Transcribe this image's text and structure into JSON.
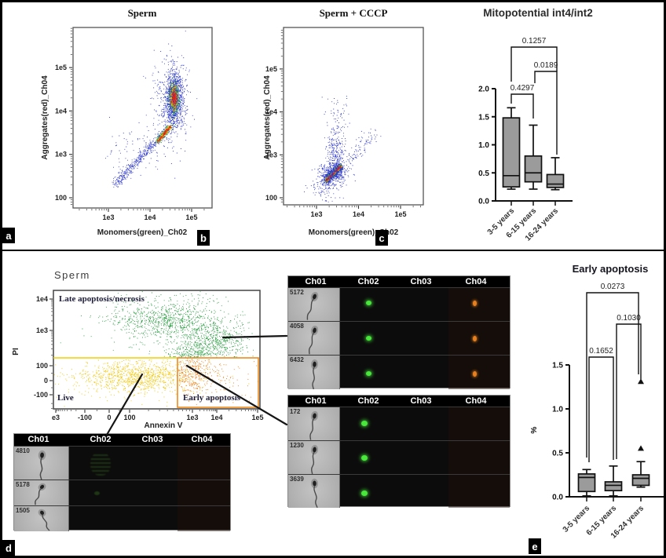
{
  "colors": {
    "blue": "#2b35cc",
    "green": "#259a3d",
    "yellow": "#f2c500",
    "orange": "#ee7c1a",
    "red": "#e02018",
    "box_fill": "#9b9b9b",
    "gate_yellow": "#f2cf00",
    "gate_orange": "#ef8a1a"
  },
  "panels": {
    "a": {
      "label": "a",
      "title": "Sperm",
      "xlabel": "Monomers(green)_Ch02",
      "ylabel": "Aggregates(red)_Ch04"
    },
    "b": {
      "label": "b",
      "title": "Sperm + CCCP",
      "xlabel": "Monomers(green)_Ch02",
      "ylabel": "Aggregates(red)_Ch04"
    },
    "c": {
      "label": "c",
      "title": "Mitopotential int4/int2"
    },
    "d": {
      "label": "d",
      "title": "Sperm",
      "xlabel": "Annexin V",
      "ylabel": "PI",
      "quadrant_labels": [
        "Late apoptosis/necrosis",
        "Live",
        "Early apoptosis"
      ]
    },
    "e": {
      "label": "e",
      "title": "Early apoptosis",
      "ylabel": "%"
    }
  },
  "strips": {
    "headers": [
      "Ch01",
      "Ch02",
      "Ch03",
      "Ch04"
    ],
    "top": {
      "rows": [
        {
          "id": "5172",
          "ch02": "green",
          "ch04": "orange"
        },
        {
          "id": "4058",
          "ch02": "green",
          "ch04": "orange"
        },
        {
          "id": "6432",
          "ch02": "green",
          "ch04": "orange"
        }
      ]
    },
    "middle": {
      "rows": [
        {
          "id": "172",
          "ch02": "green",
          "ch04": "none"
        },
        {
          "id": "1230",
          "ch02": "green",
          "ch04": "none"
        },
        {
          "id": "3639",
          "ch02": "green",
          "ch04": "none"
        }
      ]
    },
    "bottom": {
      "rows": [
        {
          "id": "4810",
          "ch02": "faint-green",
          "ch04": "none"
        },
        {
          "id": "5178",
          "ch02": "faint-dot",
          "ch04": "none"
        },
        {
          "id": "1505",
          "ch02": "none",
          "ch04": "none"
        }
      ]
    }
  },
  "chart_data": [
    {
      "id": "a",
      "type": "scatter-density",
      "title": "Sperm",
      "xlabel": "Monomers(green)_Ch02",
      "ylabel": "Aggregates(red)_Ch04",
      "x_scale": "log",
      "y_scale": "log",
      "x_tick_labels": [
        "1e3",
        "1e4",
        "1e5"
      ],
      "y_tick_labels": [
        "100",
        "1e3",
        "1e4",
        "1e5"
      ],
      "x_tick_logs": [
        3,
        4,
        5
      ],
      "y_tick_logs": [
        2,
        3,
        4,
        5
      ],
      "coords": "log10",
      "clusters": [
        {
          "name": "jc1-aggregate-main",
          "shape": "gauss",
          "cx": 4.57,
          "cy": 4.3,
          "sx": 0.1,
          "sy": 0.3,
          "n": 1000,
          "layers": [
            "blue",
            "green",
            "yellow",
            "red"
          ]
        },
        {
          "name": "halo",
          "shape": "gauss",
          "cx": 4.5,
          "cy": 4.25,
          "sx": 0.22,
          "sy": 0.5,
          "n": 450,
          "layers": [
            "blue"
          ]
        },
        {
          "name": "diag-band",
          "shape": "band",
          "from": [
            3.15,
            2.3
          ],
          "to": [
            4.45,
            3.6
          ],
          "spread": 0.055,
          "n": 450,
          "layers": [
            "blue"
          ]
        },
        {
          "name": "diag-hot",
          "shape": "band",
          "from": [
            4.18,
            3.3
          ],
          "to": [
            4.48,
            3.64
          ],
          "spread": 0.05,
          "n": 520,
          "layers": [
            "green",
            "yellow",
            "red"
          ]
        },
        {
          "name": "sparse",
          "shape": "gauss",
          "cx": 3.6,
          "cy": 3.1,
          "sx": 0.4,
          "sy": 0.3,
          "n": 70,
          "layers": [
            "blue"
          ]
        }
      ]
    },
    {
      "id": "b",
      "type": "scatter-density",
      "title": "Sperm + CCCP",
      "xlabel": "Monomers(green)_Ch02",
      "ylabel": "Aggregates(red)_Ch04",
      "x_scale": "log",
      "y_scale": "log",
      "x_tick_labels": [
        "1e3",
        "1e4",
        "1e5"
      ],
      "y_tick_labels": [
        "100",
        "1e3",
        "1e4",
        "1e5"
      ],
      "x_tick_logs": [
        3,
        4,
        5
      ],
      "y_tick_logs": [
        2,
        3,
        4,
        5
      ],
      "coords": "log10",
      "clusters": [
        {
          "name": "depolarized-main",
          "shape": "band",
          "from": [
            3.22,
            2.4
          ],
          "to": [
            3.56,
            2.73
          ],
          "spread": 0.05,
          "n": 850,
          "layers": [
            "blue",
            "green",
            "yellow",
            "red"
          ]
        },
        {
          "name": "halo",
          "shape": "gauss",
          "cx": 3.38,
          "cy": 2.55,
          "sx": 0.17,
          "sy": 0.15,
          "n": 380,
          "layers": [
            "blue"
          ]
        },
        {
          "name": "plume",
          "shape": "gauss",
          "cx": 3.45,
          "cy": 3.0,
          "sx": 0.11,
          "sy": 0.25,
          "n": 230,
          "layers": [
            "blue"
          ]
        },
        {
          "name": "upper-sparse",
          "shape": "gauss",
          "cx": 3.52,
          "cy": 3.75,
          "sx": 0.16,
          "sy": 0.3,
          "n": 70,
          "layers": [
            "blue"
          ]
        },
        {
          "name": "right-tail",
          "shape": "band",
          "from": [
            3.6,
            2.78
          ],
          "to": [
            4.35,
            3.5
          ],
          "spread": 0.09,
          "n": 100,
          "layers": [
            "blue"
          ]
        },
        {
          "name": "low-sparse",
          "shape": "gauss",
          "cx": 3.2,
          "cy": 2.2,
          "sx": 0.2,
          "sy": 0.15,
          "n": 90,
          "layers": [
            "blue"
          ]
        }
      ]
    },
    {
      "id": "c",
      "type": "box",
      "title": "Mitopotential int4/int2",
      "categories": [
        "3-5 years",
        "6-15 years",
        "16-24 years"
      ],
      "ylim": [
        0,
        2
      ],
      "y_ticks": [
        0,
        0.5,
        1,
        1.5,
        2
      ],
      "groups": [
        {
          "label": "3-5 years",
          "whisker_low": 0.21,
          "q1": 0.25,
          "median": 0.45,
          "q3": 1.48,
          "whisker_high": 1.66,
          "outliers": []
        },
        {
          "label": "6-15 years",
          "whisker_low": 0.21,
          "q1": 0.34,
          "median": 0.5,
          "q3": 0.8,
          "whisker_high": 1.35,
          "outliers": []
        },
        {
          "label": "16-24 years",
          "whisker_low": 0.2,
          "q1": 0.24,
          "median": 0.3,
          "q3": 0.47,
          "whisker_high": 0.77,
          "outliers": []
        }
      ],
      "comparisons": [
        {
          "groups": [
            0,
            1
          ],
          "p": "0.4297"
        },
        {
          "groups": [
            1,
            2
          ],
          "p": "0.0189"
        },
        {
          "groups": [
            0,
            2
          ],
          "p": "0.1257"
        }
      ]
    },
    {
      "id": "d",
      "type": "scatter-density",
      "title": "Sperm",
      "xlabel": "Annexin V",
      "ylabel": "PI",
      "x_scale": "biexponential",
      "y_scale": "biexponential",
      "x_tick_labels": [
        "e3",
        "-100",
        "0",
        "100",
        "1e3",
        "1e4",
        "1e5"
      ],
      "y_tick_labels": [
        "1e4",
        "1e3",
        "100",
        "0",
        "-100"
      ],
      "quadrant_labels": [
        "Late apoptosis/necrosis",
        "Live",
        "Early apoptosis"
      ],
      "coords": "plot-fraction",
      "clusters": [
        {
          "name": "late-apoptosis-lobe-left",
          "shape": "gauss",
          "cx": 0.551,
          "cy": 0.252,
          "sx": 0.106,
          "sy": 0.086,
          "n": 600,
          "layers": [
            "green"
          ],
          "clip": {
            "ymax": 0.565
          }
        },
        {
          "name": "late-apoptosis-lobe-right",
          "shape": "gauss",
          "cx": 0.772,
          "cy": 0.417,
          "sx": 0.084,
          "sy": 0.106,
          "n": 650,
          "layers": [
            "green"
          ],
          "clip": {
            "ymax": 0.565
          }
        },
        {
          "name": "late-apoptosis-bridge",
          "shape": "gauss",
          "cx": 0.677,
          "cy": 0.543,
          "sx": 0.053,
          "sy": 0.053,
          "n": 250,
          "layers": [
            "green"
          ],
          "clip": {
            "ymax": 0.565
          }
        },
        {
          "name": "late-apoptosis-left-sparse",
          "shape": "gauss",
          "cx": 0.369,
          "cy": 0.232,
          "sx": 0.091,
          "sy": 0.066,
          "n": 130,
          "layers": [
            "green"
          ],
          "clip": {
            "ymax": 0.565
          }
        },
        {
          "name": "late-apoptosis-strays",
          "shape": "gauss",
          "cx": 0.475,
          "cy": 0.404,
          "sx": 0.16,
          "sy": 0.14,
          "n": 90,
          "layers": [
            "green"
          ],
          "clip": {
            "ymax": 0.565
          }
        },
        {
          "name": "late-apoptosis-top",
          "shape": "gauss",
          "cx": 0.646,
          "cy": 0.086,
          "sx": 0.11,
          "sy": 0.05,
          "n": 50,
          "layers": [
            "green"
          ],
          "clip": {
            "ymax": 0.565
          }
        },
        {
          "name": "live-dense",
          "shape": "gauss",
          "cx": 0.422,
          "cy": 0.722,
          "sx": 0.137,
          "sy": 0.066,
          "n": 800,
          "layers": [
            "yellow"
          ],
          "clip": {
            "ymin": 0.585
          }
        },
        {
          "name": "live-wide",
          "shape": "gauss",
          "cx": 0.323,
          "cy": 0.755,
          "sx": 0.21,
          "sy": 0.09,
          "n": 300,
          "layers": [
            "yellow"
          ],
          "clip": {
            "ymin": 0.585
          }
        },
        {
          "name": "early-apoptosis-dense",
          "shape": "gauss",
          "cx": 0.654,
          "cy": 0.682,
          "sx": 0.06,
          "sy": 0.09,
          "n": 380,
          "layers": [
            "orange"
          ],
          "clip": {
            "xmin": 0.605,
            "ymin": 0.578
          }
        },
        {
          "name": "early-apoptosis-sparse",
          "shape": "gauss",
          "cx": 0.738,
          "cy": 0.768,
          "sx": 0.115,
          "sy": 0.107,
          "n": 140,
          "layers": [
            "orange"
          ],
          "clip": {
            "xmin": 0.605,
            "ymin": 0.578
          }
        }
      ]
    },
    {
      "id": "e",
      "type": "box",
      "title": "Early apoptosis",
      "ylabel": "%",
      "categories": [
        "3-5 years",
        "6-15 years",
        "16-24 years"
      ],
      "ylim": [
        0,
        1.5
      ],
      "y_ticks": [
        0,
        0.5,
        1,
        1.5
      ],
      "groups": [
        {
          "label": "3-5 years",
          "whisker_low": 0.01,
          "q1": 0.06,
          "median": 0.22,
          "q3": 0.26,
          "whisker_high": 0.31,
          "outliers": []
        },
        {
          "label": "6-15 years",
          "whisker_low": 0.01,
          "q1": 0.07,
          "median": 0.13,
          "q3": 0.17,
          "whisker_high": 0.35,
          "outliers": []
        },
        {
          "label": "16-24 years",
          "whisker_low": 0.11,
          "q1": 0.13,
          "median": 0.21,
          "q3": 0.25,
          "whisker_high": 0.4,
          "outliers": [
            0.55,
            1.31
          ]
        }
      ],
      "comparisons": [
        {
          "groups": [
            0,
            1
          ],
          "p": "0.1652"
        },
        {
          "groups": [
            1,
            2
          ],
          "p": "0.1030"
        },
        {
          "groups": [
            0,
            2
          ],
          "p": "0.0273"
        }
      ]
    }
  ]
}
